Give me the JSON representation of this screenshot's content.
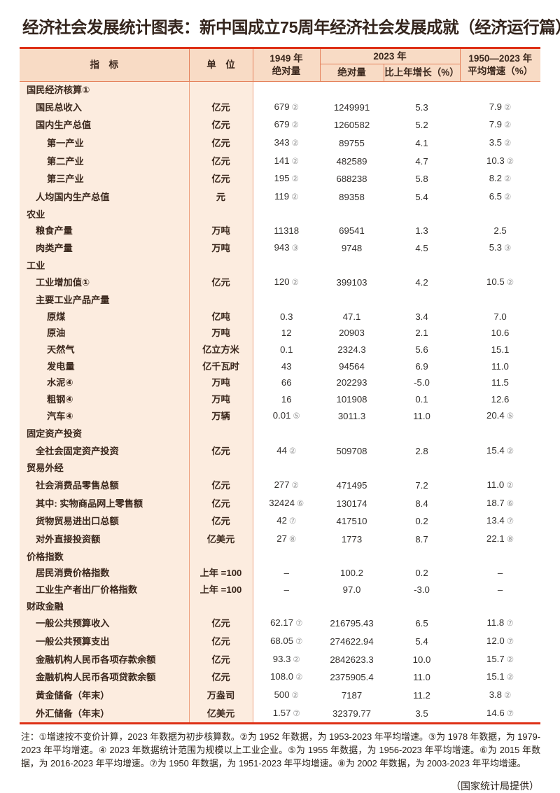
{
  "title": "经济社会发展统计图表：新中国成立75周年经济社会发展成就（经济运行篇）",
  "note": "注：①增速按不变价计算，2023 年数据为初步核算数。②为 1952 年数据，为 1953-2023 年平均增速。③为 1978 年数据，为 1979-2023 年平均增速。④ 2023 年数据统计范围为规模以上工业企业。⑤为 1955 年数据，为 1956-2023 年平均增速。⑥为 2015 年数据，为 2016-2023 年平均增速。⑦为 1950 年数据，为 1951-2023 年平均增速。⑧为 2002 年数据，为 2003-2023 年平均增速。",
  "source": "（国家统计局提供）",
  "colors": {
    "rule_red": "#de3016",
    "header_border": "#e5825c",
    "body_border": "#eda07e",
    "header_bg": "#f8dbc5",
    "peach_bg": "#fcecdf",
    "label_text": "#3a271c",
    "number_text": "#322f2c",
    "mark_text": "#949494"
  },
  "chart_data": {
    "type": "table",
    "title": "经济社会发展统计图表：新中国成立75周年经济社会发展成就（经济运行篇）",
    "header": {
      "indicator": "指　标",
      "unit": "单　位",
      "y1949_line1": "1949 年",
      "y1949_line2": "绝对量",
      "y2023": "2023 年",
      "abs2023": "绝对量",
      "growth2023": "比上年增长（%）",
      "avg_line1": "1950—2023 年",
      "avg_line2": "平均增速（%）"
    },
    "rows": [
      {
        "label": "国民经济核算①",
        "level": 0,
        "section": true
      },
      {
        "label": "国民总收入",
        "level": 1,
        "unit": "亿元",
        "v1949": "679",
        "m1949": "②",
        "v2023": "1249991",
        "growth": "5.3",
        "avg": "7.9",
        "mavg": "②"
      },
      {
        "label": "国内生产总值",
        "level": 1,
        "unit": "亿元",
        "v1949": "679",
        "m1949": "②",
        "v2023": "1260582",
        "growth": "5.2",
        "avg": "7.9",
        "mavg": "②"
      },
      {
        "label": "第一产业",
        "level": 2,
        "unit": "亿元",
        "v1949": "343",
        "m1949": "②",
        "v2023": "89755",
        "growth": "4.1",
        "avg": "3.5",
        "mavg": "②"
      },
      {
        "label": "第二产业",
        "level": 2,
        "unit": "亿元",
        "v1949": "141",
        "m1949": "②",
        "v2023": "482589",
        "growth": "4.7",
        "avg": "10.3",
        "mavg": "②"
      },
      {
        "label": "第三产业",
        "level": 2,
        "unit": "亿元",
        "v1949": "195",
        "m1949": "②",
        "v2023": "688238",
        "growth": "5.8",
        "avg": "8.2",
        "mavg": "②"
      },
      {
        "label": "人均国内生产总值",
        "level": 1,
        "unit": "元",
        "v1949": "119",
        "m1949": "②",
        "v2023": "89358",
        "growth": "5.4",
        "avg": "6.5",
        "mavg": "②"
      },
      {
        "label": "农业",
        "level": 0,
        "section": true
      },
      {
        "label": "粮食产量",
        "level": 1,
        "unit": "万吨",
        "v1949": "11318",
        "v2023": "69541",
        "growth": "1.3",
        "avg": "2.5"
      },
      {
        "label": "肉类产量",
        "level": 1,
        "unit": "万吨",
        "v1949": "943",
        "m1949": "③",
        "v2023": "9748",
        "growth": "4.5",
        "avg": "5.3",
        "mavg": "③"
      },
      {
        "label": "工业",
        "level": 0,
        "section": true
      },
      {
        "label": "工业增加值①",
        "level": 1,
        "unit": "亿元",
        "v1949": "120",
        "m1949": "②",
        "v2023": "399103",
        "growth": "4.2",
        "avg": "10.5",
        "mavg": "②"
      },
      {
        "label": "主要工业产品产量",
        "level": 1
      },
      {
        "label": "原煤",
        "level": 2,
        "unit": "亿吨",
        "v1949": "0.3",
        "v2023": "47.1",
        "growth": "3.4",
        "avg": "7.0"
      },
      {
        "label": "原油",
        "level": 2,
        "unit": "万吨",
        "v1949": "12",
        "v2023": "20903",
        "growth": "2.1",
        "avg": "10.6"
      },
      {
        "label": "天然气",
        "level": 2,
        "unit": "亿立方米",
        "v1949": "0.1",
        "v2023": "2324.3",
        "growth": "5.6",
        "avg": "15.1"
      },
      {
        "label": "发电量",
        "level": 2,
        "unit": "亿千瓦时",
        "v1949": "43",
        "v2023": "94564",
        "growth": "6.9",
        "avg": "11.0"
      },
      {
        "label": "水泥④",
        "level": 2,
        "unit": "万吨",
        "v1949": "66",
        "v2023": "202293",
        "growth": "-5.0",
        "avg": "11.5"
      },
      {
        "label": "粗钢④",
        "level": 2,
        "unit": "万吨",
        "v1949": "16",
        "v2023": "101908",
        "growth": "0.1",
        "avg": "12.6"
      },
      {
        "label": "汽车④",
        "level": 2,
        "unit": "万辆",
        "v1949": "0.01",
        "m1949": "⑤",
        "v2023": "3011.3",
        "growth": "11.0",
        "avg": "20.4",
        "mavg": "⑤"
      },
      {
        "label": "固定资产投资",
        "level": 0,
        "section": true
      },
      {
        "label": "全社会固定资产投资",
        "level": 1,
        "unit": "亿元",
        "v1949": "44",
        "m1949": "②",
        "v2023": "509708",
        "growth": "2.8",
        "avg": "15.4",
        "mavg": "②"
      },
      {
        "label": "贸易外经",
        "level": 0,
        "section": true
      },
      {
        "label": "社会消费品零售总额",
        "level": 1,
        "unit": "亿元",
        "v1949": "277",
        "m1949": "②",
        "v2023": "471495",
        "growth": "7.2",
        "avg": "11.0",
        "mavg": "②"
      },
      {
        "label": "其中: 实物商品网上零售额",
        "level": 1,
        "unit": "亿元",
        "v1949": "32424",
        "m1949": "⑥",
        "v2023": "130174",
        "growth": "8.4",
        "avg": "18.7",
        "mavg": "⑥"
      },
      {
        "label": "货物贸易进出口总额",
        "level": 1,
        "unit": "亿元",
        "v1949": "42",
        "m1949": "⑦",
        "v2023": "417510",
        "growth": "0.2",
        "avg": "13.4",
        "mavg": "⑦"
      },
      {
        "label": "对外直接投资额",
        "level": 1,
        "unit": "亿美元",
        "v1949": "27",
        "m1949": "⑧",
        "v2023": "1773",
        "growth": "8.7",
        "avg": "22.1",
        "mavg": "⑧"
      },
      {
        "label": "价格指数",
        "level": 0,
        "section": true
      },
      {
        "label": "居民消费价格指数",
        "level": 1,
        "unit": "上年 =100",
        "v1949": "–",
        "v2023": "100.2",
        "growth": "0.2",
        "avg": "–"
      },
      {
        "label": "工业生产者出厂价格指数",
        "level": 1,
        "unit": "上年 =100",
        "v1949": "–",
        "v2023": "97.0",
        "growth": "-3.0",
        "avg": "–"
      },
      {
        "label": "财政金融",
        "level": 0,
        "section": true
      },
      {
        "label": "一般公共预算收入",
        "level": 1,
        "unit": "亿元",
        "v1949": "62.17",
        "m1949": "⑦",
        "v2023": "216795.43",
        "growth": "6.5",
        "avg": "11.8",
        "mavg": "⑦"
      },
      {
        "label": "一般公共预算支出",
        "level": 1,
        "unit": "亿元",
        "v1949": "68.05",
        "m1949": "⑦",
        "v2023": "274622.94",
        "growth": "5.4",
        "avg": "12.0",
        "mavg": "⑦"
      },
      {
        "label": "金融机构人民币各项存款余额",
        "level": 1,
        "unit": "亿元",
        "v1949": "93.3",
        "m1949": "②",
        "v2023": "2842623.3",
        "growth": "10.0",
        "avg": "15.7",
        "mavg": "②"
      },
      {
        "label": "金融机构人民币各项贷款余额",
        "level": 1,
        "unit": "亿元",
        "v1949": "108.0",
        "m1949": "②",
        "v2023": "2375905.4",
        "growth": "11.0",
        "avg": "15.1",
        "mavg": "②"
      },
      {
        "label": "黄金储备（年末）",
        "level": 1,
        "unit": "万盎司",
        "v1949": "500",
        "m1949": "②",
        "v2023": "7187",
        "growth": "11.2",
        "avg": "3.8",
        "mavg": "②"
      },
      {
        "label": "外汇储备（年末）",
        "level": 1,
        "unit": "亿美元",
        "v1949": "1.57",
        "m1949": "⑦",
        "v2023": "32379.77",
        "growth": "3.5",
        "avg": "14.6",
        "mavg": "⑦"
      }
    ]
  }
}
